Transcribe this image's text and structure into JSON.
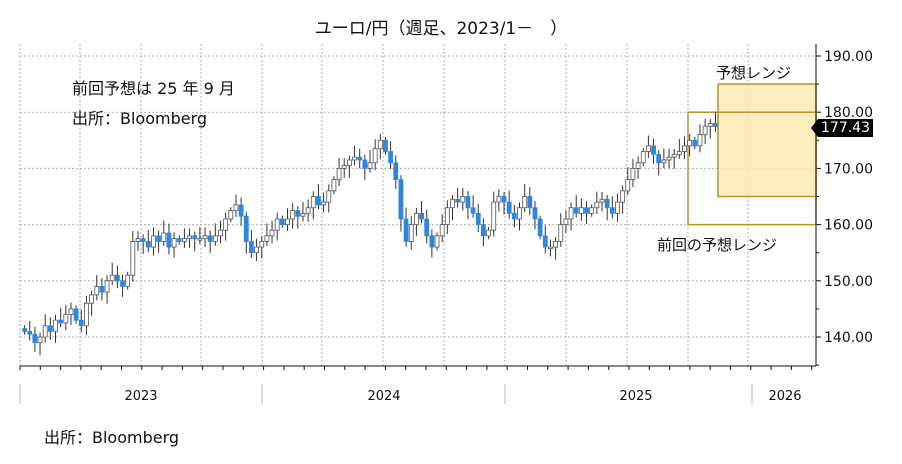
{
  "title": "ユーロ/円（週足、2023/1－　）",
  "notes": {
    "line1": "前回予想は 25 年 9 月",
    "line2": "出所：Bloomberg"
  },
  "annotations": {
    "forecast_range": "予想レンジ",
    "previous_forecast_range": "前回の予想レンジ"
  },
  "last_price_badge": "177.43",
  "source_bottom": "出所：Bloomberg",
  "colors": {
    "bullish_candle": "#9a9a9a",
    "bearish_candle": "#2e86de",
    "forecast_fill": "#fdeab3",
    "range_border": "#b5942f",
    "grid": "#b0b0b0"
  },
  "chart_data": {
    "type": "candlestick",
    "title": "ユーロ/円（週足、2023/1－　）",
    "xlabel": "",
    "ylabel": "",
    "ylim": [
      134,
      192
    ],
    "y_ticks": [
      140,
      150,
      160,
      170,
      180,
      190
    ],
    "y_tick_labels": [
      "140.00",
      "150.00",
      "160.00",
      "170.00",
      "180.00",
      "190.00"
    ],
    "x_tick_labels": [
      "2023",
      "2024",
      "2025",
      "2026"
    ],
    "grid": true,
    "last_value": 177.43,
    "forecast_range": {
      "label": "予想レンジ",
      "from": "2025-10",
      "to": "2026-09",
      "low": 165,
      "high": 185
    },
    "previous_forecast_range": {
      "label": "前回の予想レンジ",
      "from": "2025-09",
      "to": "2026-09",
      "low": 160,
      "high": 180
    },
    "series_summary": [
      {
        "period": "2023-01",
        "approx_close": 141
      },
      {
        "period": "2023-04",
        "approx_close": 145
      },
      {
        "period": "2023-06",
        "approx_close": 156
      },
      {
        "period": "2023-08",
        "approx_close": 158
      },
      {
        "period": "2023-10",
        "approx_close": 158
      },
      {
        "period": "2023-11",
        "approx_close": 163
      },
      {
        "period": "2023-12",
        "approx_close": 156
      },
      {
        "period": "2024-03",
        "approx_close": 163
      },
      {
        "period": "2024-06",
        "approx_close": 171
      },
      {
        "period": "2024-07",
        "approx_close": 174
      },
      {
        "period": "2024-08",
        "approx_close": 161
      },
      {
        "period": "2024-10",
        "approx_close": 163
      },
      {
        "period": "2024-12",
        "approx_close": 160
      },
      {
        "period": "2025-03",
        "approx_close": 162
      },
      {
        "period": "2025-04",
        "approx_close": 158
      },
      {
        "period": "2025-06",
        "approx_close": 168
      },
      {
        "period": "2025-08",
        "approx_close": 172
      },
      {
        "period": "2025-10",
        "approx_close": 177.43
      }
    ]
  }
}
